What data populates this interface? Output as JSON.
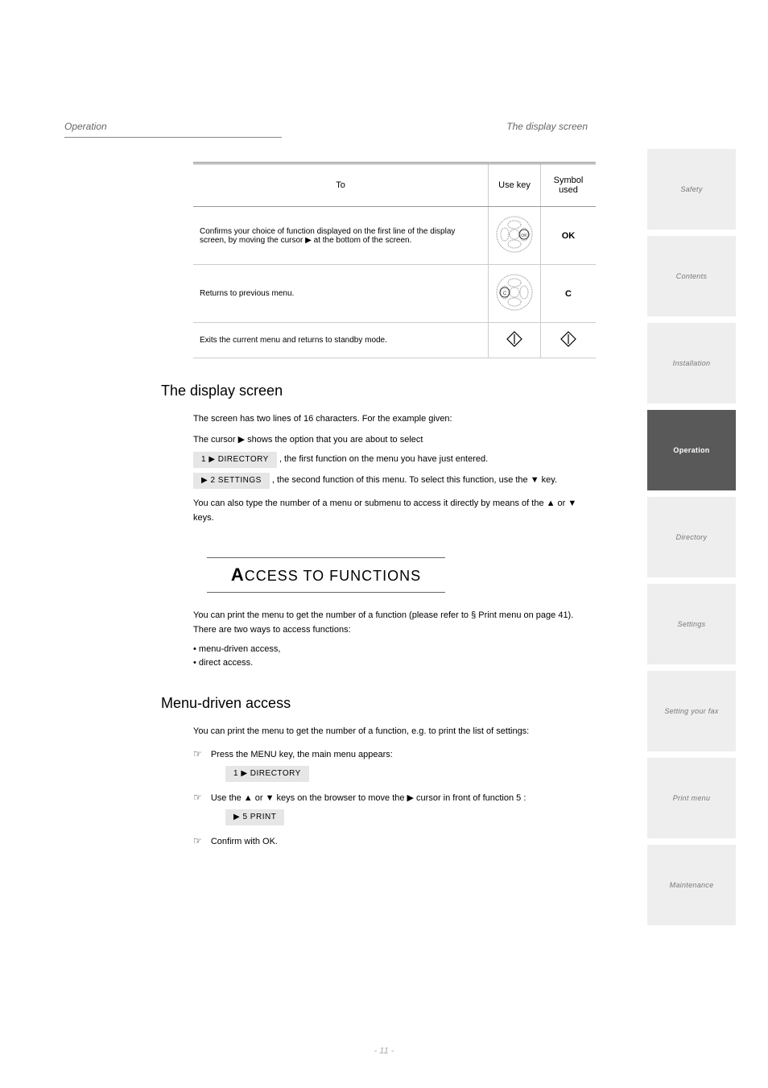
{
  "page": {
    "header_left": "Operation",
    "header_right": "The display screen",
    "footer": "- 11 -"
  },
  "sidebar": [
    {
      "label": "Safety",
      "active": false
    },
    {
      "label": "Contents",
      "active": false
    },
    {
      "label": "Installation",
      "active": false
    },
    {
      "label": "Operation",
      "active": true
    },
    {
      "label": "Directory",
      "active": false
    },
    {
      "label": "Settings",
      "active": false
    },
    {
      "label": "Setting your fax",
      "active": false
    },
    {
      "label": "Print menu",
      "active": false
    },
    {
      "label": "Maintenance",
      "active": false
    }
  ],
  "table": {
    "headers": [
      "To",
      "Use key",
      "Symbol used"
    ],
    "rows": [
      {
        "to": "Confirms your choice of function displayed on the first line of the display screen, by moving the cursor ▶ at the bottom of the screen.",
        "key_img": "dpad-ok",
        "symbol": "OK"
      },
      {
        "to": "Returns to previous menu.",
        "key_img": "dpad-c",
        "symbol": "C"
      },
      {
        "to": "Exits the current menu and returns to standby mode.",
        "key_img": "diamond",
        "symbol_svg": true
      }
    ]
  },
  "display_screen": {
    "heading": "The display screen",
    "intro": "The screen has two lines of 16 characters. For the example given:",
    "line1": "The cursor ▶ shows the option that you are about to select",
    "pill1": "1 ▶ DIRECTORY",
    "after_pill1": ", the first function on the menu you have just entered.",
    "pill2": "▶ 2 SETTINGS",
    "after_pill2": ", the second function of this menu. To select this function, use the ▼ key.",
    "final": "You can also type the number of a menu or submenu to access it directly by means of the ▲ or ▼ keys."
  },
  "access": {
    "banner": "CCESS TO FUNCTIONS",
    "banner_first": "A",
    "intro": "You can print the menu to get the number of a function (please refer to § Print menu on page 41). There are two ways to access functions:",
    "bullet1": "menu-driven access,",
    "bullet2": "direct access.",
    "menu_heading": "Menu-driven access",
    "menu_intro": "You can print the menu to get the number of a function, e.g. to print the list of settings:",
    "step1": "Press the MENU key, the main menu appears:",
    "step1_pill": "1 ▶ DIRECTORY",
    "step2": "Use the ▲ or ▼ keys on the browser to move the ▶ cursor in front of function 5 :",
    "step2_pill": "▶ 5 PRINT",
    "step3": "Confirm with OK."
  },
  "colors": {
    "sidebar_bg": "#eeeeee",
    "sidebar_active_bg": "#595959",
    "sidebar_text": "#777777",
    "sidebar_active_text": "#ffffff",
    "pill_bg": "#e6e6e6"
  }
}
